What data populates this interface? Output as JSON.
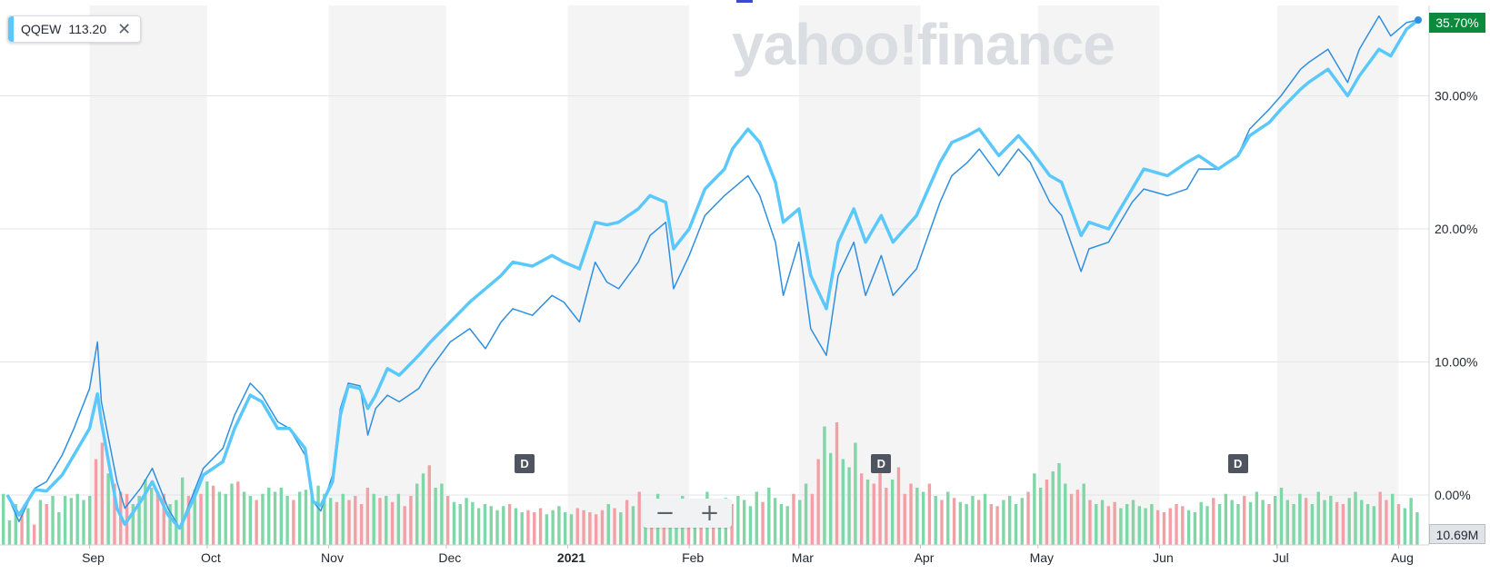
{
  "watermark": "yahoo!finance",
  "symbol_chip": {
    "symbol": "QQEW",
    "price": "113.20",
    "close_icon": "close-icon",
    "color": "#5ac8fa"
  },
  "last_value_badge": "35.70%",
  "volume_badge": "10.69M",
  "zoom": {
    "minus": "−",
    "plus": "+"
  },
  "dividend_markers": [
    {
      "label": "D",
      "date": "2020-12-21"
    },
    {
      "label": "D",
      "date": "2021-03-22"
    },
    {
      "label": "D",
      "date": "2021-06-21"
    }
  ],
  "colors": {
    "series_main": "#5ac8fa",
    "series_compare": "#2f8fe0",
    "badge_green": "#0b8a3c",
    "volume_up": "#7fd6a6",
    "volume_down": "#f2a0a6",
    "band_shade": "#f4f4f5"
  },
  "chart_data": {
    "type": "line",
    "title": "",
    "xlabel": "",
    "ylabel": "",
    "x_range": [
      "2020-08-11",
      "2021-08-06"
    ],
    "ylim": [
      -3.5,
      37
    ],
    "y_ticks": [
      "0.00%",
      "10.00%",
      "20.00%",
      "30.00%"
    ],
    "x_ticks": [
      "Sep",
      "Oct",
      "Nov",
      "Dec",
      "2021",
      "Feb",
      "Mar",
      "Apr",
      "May",
      "Jun",
      "Jul",
      "Aug"
    ],
    "grid": true,
    "series": [
      {
        "color": "#5ac8fa",
        "style": "thick",
        "points": [
          [
            "2020-08-11",
            0.0
          ],
          [
            "2020-08-14",
            -1.5
          ],
          [
            "2020-08-18",
            0.4
          ],
          [
            "2020-08-21",
            0.3
          ],
          [
            "2020-08-25",
            1.5
          ],
          [
            "2020-08-28",
            3.0
          ],
          [
            "2020-09-01",
            5.0
          ],
          [
            "2020-09-03",
            7.6
          ],
          [
            "2020-09-04",
            5.5
          ],
          [
            "2020-09-08",
            -1.0
          ],
          [
            "2020-09-10",
            -2.2
          ],
          [
            "2020-09-14",
            -0.5
          ],
          [
            "2020-09-17",
            1.0
          ],
          [
            "2020-09-21",
            -1.5
          ],
          [
            "2020-09-24",
            -2.5
          ],
          [
            "2020-09-28",
            0.0
          ],
          [
            "2020-09-30",
            1.5
          ],
          [
            "2020-10-05",
            2.5
          ],
          [
            "2020-10-08",
            5.0
          ],
          [
            "2020-10-12",
            7.5
          ],
          [
            "2020-10-15",
            7.0
          ],
          [
            "2020-10-19",
            5.0
          ],
          [
            "2020-10-22",
            5.0
          ],
          [
            "2020-10-26",
            3.5
          ],
          [
            "2020-10-28",
            -0.5
          ],
          [
            "2020-10-30",
            -0.8
          ],
          [
            "2020-11-02",
            1.0
          ],
          [
            "2020-11-04",
            6.0
          ],
          [
            "2020-11-06",
            8.2
          ],
          [
            "2020-11-09",
            8.0
          ],
          [
            "2020-11-11",
            6.5
          ],
          [
            "2020-11-13",
            7.5
          ],
          [
            "2020-11-16",
            9.5
          ],
          [
            "2020-11-19",
            9.0
          ],
          [
            "2020-11-24",
            10.5
          ],
          [
            "2020-11-27",
            11.5
          ],
          [
            "2020-12-02",
            13.0
          ],
          [
            "2020-12-07",
            14.5
          ],
          [
            "2020-12-11",
            15.5
          ],
          [
            "2020-12-15",
            16.5
          ],
          [
            "2020-12-18",
            17.5
          ],
          [
            "2020-12-23",
            17.2
          ],
          [
            "2020-12-28",
            18.0
          ],
          [
            "2020-12-31",
            17.5
          ],
          [
            "2021-01-04",
            17.0
          ],
          [
            "2021-01-08",
            20.5
          ],
          [
            "2021-01-11",
            20.3
          ],
          [
            "2021-01-14",
            20.5
          ],
          [
            "2021-01-19",
            21.5
          ],
          [
            "2021-01-22",
            22.5
          ],
          [
            "2021-01-26",
            22.0
          ],
          [
            "2021-01-28",
            18.5
          ],
          [
            "2021-02-01",
            20.0
          ],
          [
            "2021-02-05",
            23.0
          ],
          [
            "2021-02-10",
            24.5
          ],
          [
            "2021-02-12",
            26.0
          ],
          [
            "2021-02-16",
            27.5
          ],
          [
            "2021-02-19",
            26.5
          ],
          [
            "2021-02-23",
            23.5
          ],
          [
            "2021-02-25",
            20.5
          ],
          [
            "2021-03-01",
            21.5
          ],
          [
            "2021-03-04",
            16.5
          ],
          [
            "2021-03-08",
            14.0
          ],
          [
            "2021-03-11",
            19.0
          ],
          [
            "2021-03-15",
            21.5
          ],
          [
            "2021-03-18",
            19.0
          ],
          [
            "2021-03-22",
            21.0
          ],
          [
            "2021-03-25",
            19.0
          ],
          [
            "2021-03-31",
            21.0
          ],
          [
            "2021-04-06",
            25.0
          ],
          [
            "2021-04-09",
            26.5
          ],
          [
            "2021-04-13",
            27.0
          ],
          [
            "2021-04-16",
            27.5
          ],
          [
            "2021-04-21",
            25.5
          ],
          [
            "2021-04-26",
            27.0
          ],
          [
            "2021-04-29",
            26.0
          ],
          [
            "2021-05-04",
            24.0
          ],
          [
            "2021-05-07",
            23.5
          ],
          [
            "2021-05-12",
            19.5
          ],
          [
            "2021-05-14",
            20.5
          ],
          [
            "2021-05-19",
            20.0
          ],
          [
            "2021-05-21",
            21.0
          ],
          [
            "2021-05-25",
            23.0
          ],
          [
            "2021-05-28",
            24.5
          ],
          [
            "2021-06-03",
            24.0
          ],
          [
            "2021-06-08",
            25.0
          ],
          [
            "2021-06-11",
            25.5
          ],
          [
            "2021-06-16",
            24.5
          ],
          [
            "2021-06-21",
            25.5
          ],
          [
            "2021-06-24",
            27.0
          ],
          [
            "2021-06-29",
            28.0
          ],
          [
            "2021-07-02",
            29.0
          ],
          [
            "2021-07-07",
            30.5
          ],
          [
            "2021-07-09",
            31.0
          ],
          [
            "2021-07-14",
            32.0
          ],
          [
            "2021-07-19",
            30.0
          ],
          [
            "2021-07-22",
            31.5
          ],
          [
            "2021-07-27",
            33.5
          ],
          [
            "2021-07-30",
            33.0
          ],
          [
            "2021-08-03",
            35.0
          ],
          [
            "2021-08-06",
            35.7
          ]
        ]
      },
      {
        "color": "#2f8fe0",
        "style": "thin",
        "points": [
          [
            "2020-08-11",
            0.0
          ],
          [
            "2020-08-14",
            -2.0
          ],
          [
            "2020-08-18",
            0.5
          ],
          [
            "2020-08-21",
            1.0
          ],
          [
            "2020-08-25",
            3.0
          ],
          [
            "2020-08-28",
            5.0
          ],
          [
            "2020-09-01",
            8.0
          ],
          [
            "2020-09-03",
            11.5
          ],
          [
            "2020-09-04",
            7.0
          ],
          [
            "2020-09-08",
            1.0
          ],
          [
            "2020-09-10",
            -1.0
          ],
          [
            "2020-09-14",
            0.5
          ],
          [
            "2020-09-17",
            2.0
          ],
          [
            "2020-09-21",
            -1.0
          ],
          [
            "2020-09-24",
            -2.5
          ],
          [
            "2020-09-28",
            0.5
          ],
          [
            "2020-09-30",
            2.0
          ],
          [
            "2020-10-05",
            3.5
          ],
          [
            "2020-10-08",
            6.0
          ],
          [
            "2020-10-12",
            8.4
          ],
          [
            "2020-10-15",
            7.5
          ],
          [
            "2020-10-19",
            5.5
          ],
          [
            "2020-10-22",
            5.0
          ],
          [
            "2020-10-26",
            3.0
          ],
          [
            "2020-10-28",
            -0.5
          ],
          [
            "2020-10-30",
            -1.2
          ],
          [
            "2020-11-02",
            1.5
          ],
          [
            "2020-11-04",
            6.5
          ],
          [
            "2020-11-06",
            8.4
          ],
          [
            "2020-11-09",
            8.2
          ],
          [
            "2020-11-11",
            4.5
          ],
          [
            "2020-11-13",
            6.5
          ],
          [
            "2020-11-16",
            7.5
          ],
          [
            "2020-11-19",
            7.0
          ],
          [
            "2020-11-24",
            8.0
          ],
          [
            "2020-11-27",
            9.5
          ],
          [
            "2020-12-02",
            11.5
          ],
          [
            "2020-12-07",
            12.5
          ],
          [
            "2020-12-11",
            11.0
          ],
          [
            "2020-12-15",
            13.0
          ],
          [
            "2020-12-18",
            14.0
          ],
          [
            "2020-12-23",
            13.5
          ],
          [
            "2020-12-28",
            15.0
          ],
          [
            "2020-12-31",
            14.5
          ],
          [
            "2021-01-04",
            13.0
          ],
          [
            "2021-01-08",
            17.5
          ],
          [
            "2021-01-11",
            16.0
          ],
          [
            "2021-01-14",
            15.5
          ],
          [
            "2021-01-19",
            17.5
          ],
          [
            "2021-01-22",
            19.5
          ],
          [
            "2021-01-26",
            20.5
          ],
          [
            "2021-01-28",
            15.5
          ],
          [
            "2021-02-01",
            18.0
          ],
          [
            "2021-02-05",
            21.0
          ],
          [
            "2021-02-10",
            22.5
          ],
          [
            "2021-02-12",
            23.0
          ],
          [
            "2021-02-16",
            24.0
          ],
          [
            "2021-02-19",
            22.5
          ],
          [
            "2021-02-23",
            19.0
          ],
          [
            "2021-02-25",
            15.0
          ],
          [
            "2021-03-01",
            19.0
          ],
          [
            "2021-03-04",
            12.5
          ],
          [
            "2021-03-08",
            10.5
          ],
          [
            "2021-03-11",
            16.5
          ],
          [
            "2021-03-15",
            19.0
          ],
          [
            "2021-03-18",
            15.0
          ],
          [
            "2021-03-22",
            18.0
          ],
          [
            "2021-03-25",
            15.0
          ],
          [
            "2021-03-31",
            17.0
          ],
          [
            "2021-04-06",
            22.0
          ],
          [
            "2021-04-09",
            24.0
          ],
          [
            "2021-04-13",
            25.0
          ],
          [
            "2021-04-16",
            26.0
          ],
          [
            "2021-04-21",
            24.0
          ],
          [
            "2021-04-26",
            26.0
          ],
          [
            "2021-04-29",
            25.0
          ],
          [
            "2021-05-04",
            22.0
          ],
          [
            "2021-05-07",
            21.0
          ],
          [
            "2021-05-12",
            16.8
          ],
          [
            "2021-05-14",
            18.5
          ],
          [
            "2021-05-19",
            19.0
          ],
          [
            "2021-05-21",
            20.0
          ],
          [
            "2021-05-25",
            22.0
          ],
          [
            "2021-05-28",
            23.0
          ],
          [
            "2021-06-03",
            22.5
          ],
          [
            "2021-06-08",
            23.0
          ],
          [
            "2021-06-11",
            24.5
          ],
          [
            "2021-06-16",
            24.5
          ],
          [
            "2021-06-21",
            25.5
          ],
          [
            "2021-06-24",
            27.5
          ],
          [
            "2021-06-29",
            29.0
          ],
          [
            "2021-07-02",
            30.0
          ],
          [
            "2021-07-07",
            32.0
          ],
          [
            "2021-07-09",
            32.5
          ],
          [
            "2021-07-14",
            33.5
          ],
          [
            "2021-07-19",
            31.0
          ],
          [
            "2021-07-22",
            33.5
          ],
          [
            "2021-07-27",
            36.0
          ],
          [
            "2021-07-30",
            34.5
          ],
          [
            "2021-08-03",
            35.5
          ],
          [
            "2021-08-06",
            35.7
          ]
        ]
      }
    ],
    "volume": [
      2.5,
      1.2,
      2.0,
      1.5,
      1.8,
      1.0,
      2.2,
      2.0,
      2.4,
      1.6,
      2.4,
      2.3,
      2.5,
      2.2,
      2.4,
      4.2,
      5.0,
      3.5,
      3.0,
      2.6,
      2.5,
      2.0,
      2.4,
      3.2,
      2.8,
      2.6,
      2.5,
      2.0,
      2.2,
      3.3,
      2.4,
      2.7,
      2.5,
      3.1,
      2.9,
      2.6,
      2.5,
      3.0,
      3.1,
      2.6,
      2.4,
      2.2,
      2.5,
      2.8,
      2.6,
      2.8,
      2.4,
      2.2,
      2.6,
      2.7,
      2.4,
      2.9,
      2.5,
      2.3,
      2.1,
      2.5,
      2.2,
      2.4,
      2.0,
      2.8,
      2.5,
      2.3,
      2.4,
      2.1,
      2.5,
      1.9,
      2.4,
      3.0,
      3.5,
      3.9,
      2.8,
      3.0,
      2.4,
      2.1,
      2.0,
      2.3,
      2.1,
      1.8,
      2.0,
      1.9,
      1.7,
      1.9,
      2.0,
      1.8,
      1.6,
      1.7,
      1.6,
      1.8,
      1.5,
      1.7,
      1.9,
      1.6,
      1.5,
      1.8,
      1.7,
      1.6,
      1.5,
      1.7,
      2.0,
      1.8,
      1.6,
      2.2,
      1.9,
      2.6,
      2.0,
      1.8,
      2.5,
      2.2,
      2.0,
      1.9,
      2.4,
      1.8,
      2.2,
      1.9,
      2.6,
      2.0,
      1.8,
      2.3,
      2.0,
      2.4,
      2.2,
      1.9,
      2.6,
      2.1,
      2.8,
      2.3,
      2.0,
      1.9,
      2.5,
      2.2,
      3.0,
      2.5,
      4.2,
      5.8,
      4.5,
      6.0,
      4.2,
      3.8,
      5.0,
      3.5,
      3.2,
      3.0,
      3.5,
      2.8,
      3.2,
      3.8,
      2.5,
      3.0,
      2.8,
      2.6,
      3.0,
      2.4,
      2.2,
      2.6,
      2.3,
      2.1,
      2.0,
      2.4,
      2.2,
      2.5,
      2.0,
      1.9,
      2.2,
      2.4,
      2.0,
      2.3,
      2.6,
      3.5,
      2.8,
      3.2,
      3.6,
      4.0,
      3.0,
      2.5,
      2.7,
      3.0,
      2.2,
      2.0,
      2.2,
      1.9,
      2.1,
      1.8,
      2.0,
      2.2,
      1.9,
      1.8,
      2.0,
      1.7,
      1.6,
      1.8,
      2.0,
      1.9,
      1.7,
      1.6,
      2.1,
      1.9,
      2.3,
      2.0,
      2.5,
      2.2,
      2.0,
      2.4,
      2.1,
      2.6,
      2.2,
      2.0,
      2.4,
      2.8,
      2.2,
      2.0,
      2.5,
      2.3,
      2.0,
      2.6,
      2.2,
      2.4,
      2.1,
      2.0,
      2.3,
      2.6,
      2.2,
      2.0,
      1.9,
      2.6,
      2.2,
      2.5,
      2.0,
      1.8,
      2.3,
      1.6
    ]
  }
}
